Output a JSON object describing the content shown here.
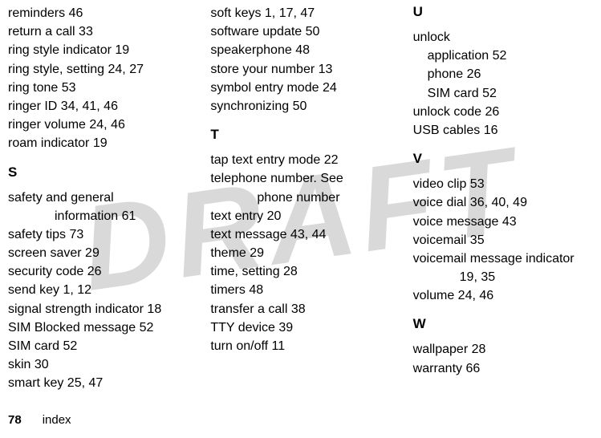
{
  "watermark": "DRAFT",
  "footer": {
    "page_number": "78",
    "label": "index"
  },
  "columns": [
    {
      "items": [
        {
          "type": "entry",
          "text": "reminders  46"
        },
        {
          "type": "entry",
          "text": "return a call  33"
        },
        {
          "type": "entry",
          "text": "ring style indicator  19"
        },
        {
          "type": "entry",
          "text": "ring style, setting  24, 27"
        },
        {
          "type": "entry",
          "text": "ring tone  53"
        },
        {
          "type": "entry",
          "text": "ringer ID  34, 41, 46"
        },
        {
          "type": "entry",
          "text": "ringer volume  24, 46"
        },
        {
          "type": "entry",
          "text": "roam indicator  19"
        },
        {
          "type": "letter",
          "text": "S"
        },
        {
          "type": "entry",
          "text": "safety and general "
        },
        {
          "type": "entry-indent",
          "text": "information  61"
        },
        {
          "type": "entry",
          "text": "safety tips  73"
        },
        {
          "type": "entry",
          "text": "screen saver  29"
        },
        {
          "type": "entry",
          "text": "security code  26"
        },
        {
          "type": "entry",
          "text": "send key  1, 12"
        },
        {
          "type": "entry",
          "text": "signal strength indicator  18"
        },
        {
          "type": "entry",
          "text": "SIM Blocked message  52"
        },
        {
          "type": "entry",
          "text": "SIM card  52"
        },
        {
          "type": "entry",
          "text": "skin  30"
        },
        {
          "type": "entry",
          "text": "smart key  25, 47"
        }
      ]
    },
    {
      "items": [
        {
          "type": "entry",
          "text": "soft keys  1, 17, 47"
        },
        {
          "type": "entry",
          "text": "software update  50"
        },
        {
          "type": "entry",
          "text": "speakerphone  48"
        },
        {
          "type": "entry",
          "text": "store your number  13"
        },
        {
          "type": "entry",
          "text": "symbol entry mode  24"
        },
        {
          "type": "entry",
          "text": "synchronizing  50"
        },
        {
          "type": "letter",
          "text": "T"
        },
        {
          "type": "entry",
          "text": "tap text entry mode  22"
        },
        {
          "type": "entry",
          "text": "telephone number. See "
        },
        {
          "type": "entry-indent",
          "text": "phone number"
        },
        {
          "type": "entry",
          "text": "text entry  20"
        },
        {
          "type": "entry",
          "text": "text message  43, 44"
        },
        {
          "type": "entry",
          "text": "theme  29"
        },
        {
          "type": "entry",
          "text": "time, setting  28"
        },
        {
          "type": "entry",
          "text": "timers  48"
        },
        {
          "type": "entry",
          "text": "transfer a call  38"
        },
        {
          "type": "entry",
          "text": "TTY device  39"
        },
        {
          "type": "entry",
          "text": "turn on/off  11"
        }
      ]
    },
    {
      "items": [
        {
          "type": "letter-first",
          "text": "U"
        },
        {
          "type": "entry",
          "text": "unlock"
        },
        {
          "type": "entry-indent-small",
          "text": "application  52"
        },
        {
          "type": "entry-indent-small",
          "text": "phone  26"
        },
        {
          "type": "entry-indent-small",
          "text": "SIM card  52"
        },
        {
          "type": "entry",
          "text": "unlock code  26"
        },
        {
          "type": "entry",
          "text": "USB cables  16"
        },
        {
          "type": "letter",
          "text": "V"
        },
        {
          "type": "entry",
          "text": "video clip  53"
        },
        {
          "type": "entry",
          "text": "voice dial  36, 40, 49"
        },
        {
          "type": "entry",
          "text": "voice message  43"
        },
        {
          "type": "entry",
          "text": "voicemail  35"
        },
        {
          "type": "entry",
          "text": "voicemail message indicator"
        },
        {
          "type": "entry-indent",
          "text": "19, 35"
        },
        {
          "type": "entry",
          "text": "volume  24, 46"
        },
        {
          "type": "letter",
          "text": "W"
        },
        {
          "type": "entry",
          "text": "wallpaper  28"
        },
        {
          "type": "entry",
          "text": "warranty  66"
        }
      ]
    }
  ]
}
